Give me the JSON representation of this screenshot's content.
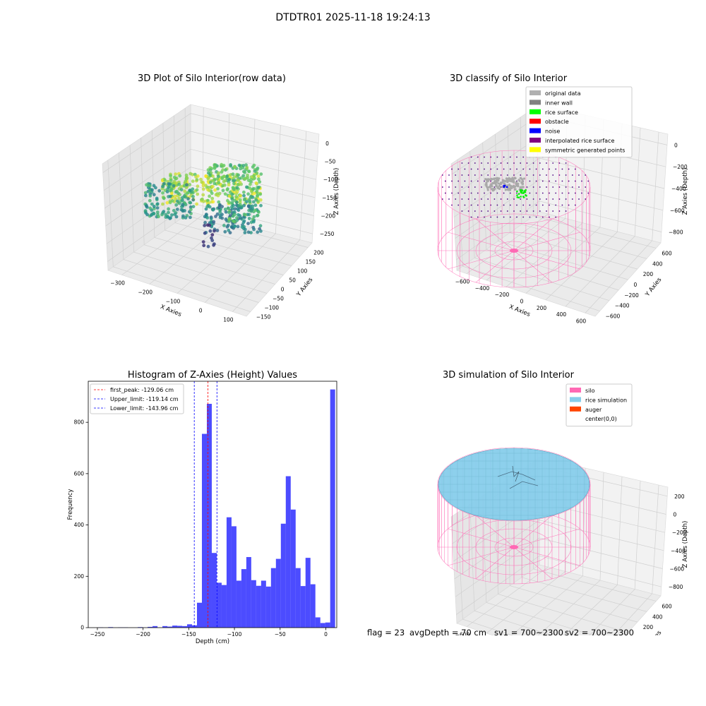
{
  "suptitle": "DTDTR01 2025-11-18 19:24:13",
  "panels": {
    "raw": {
      "title": "3D Plot of Silo Interior(row data)",
      "xlabel": "X Axies",
      "ylabel": "Y Axies",
      "zlabel": "Z Axies (Depth)",
      "xticks": [
        "−300",
        "−200",
        "−100",
        "0",
        "100"
      ],
      "yticks": [
        "−150",
        "−100",
        "−50",
        "0",
        "50",
        "100",
        "150",
        "200"
      ],
      "zticks": [
        "0",
        "−50",
        "−100",
        "−150",
        "−200",
        "−250"
      ]
    },
    "classify": {
      "title": "3D classify of Silo Interior",
      "xlabel": "X Axies",
      "ylabel": "Y Axies",
      "zlabel": "Z Axies (Depth)",
      "xticks": [
        "−600",
        "−400",
        "−200",
        "0",
        "200",
        "400",
        "600"
      ],
      "yticks": [
        "−600",
        "−400",
        "−200",
        "0",
        "200",
        "400",
        "600"
      ],
      "zticks": [
        "0",
        "−200",
        "−400",
        "−600",
        "−800"
      ],
      "legend": [
        {
          "label": "original data",
          "color": "#b0b0b0"
        },
        {
          "label": "inner wall",
          "color": "#808080"
        },
        {
          "label": "rice surface",
          "color": "#00ff00"
        },
        {
          "label": "obstacle",
          "color": "#ff0000"
        },
        {
          "label": "noise",
          "color": "#0000ff"
        },
        {
          "label": "interpolated rice surface",
          "color": "#800080"
        },
        {
          "label": "symmetric generated points",
          "color": "#ffff00"
        }
      ]
    },
    "simulation": {
      "title": "3D simulation of Silo Interior",
      "xlabel": "X Axies",
      "ylabel": "Y Axies",
      "zlabel": "Z Axies (Depth)",
      "xticks": [
        "−600",
        "−400",
        "−200",
        "0",
        "200",
        "400",
        "600"
      ],
      "yticks": [
        "−600",
        "−400",
        "−200",
        "0",
        "200",
        "400",
        "600"
      ],
      "zticks": [
        "200",
        "0",
        "−200",
        "−400",
        "−600",
        "−800"
      ],
      "legend": [
        {
          "label": "silo",
          "color": "#ff69b4"
        },
        {
          "label": "rice simulation",
          "color": "#87ceeb"
        },
        {
          "label": "auger",
          "color": "#ff4500"
        },
        {
          "label": "center(0,0)",
          "color": ""
        }
      ]
    }
  },
  "colors": {
    "silo": "#ff69b4",
    "rice": "#87ceeb",
    "hist": "#0000ff",
    "peak": "#ff0000",
    "limit": "#0000ff"
  },
  "footer": {
    "flag": "flag = 23",
    "avgdepth": "avgDepth = 70 cm",
    "sv1": "sv1 = 700~2300",
    "sv2": "sv2 = 700~2300"
  },
  "chart_data": {
    "type": "bar",
    "title": "Histogram of Z-Axies (Height) Values",
    "xlabel": "Depth (cm)",
    "ylabel": "Frequency",
    "xlim": [
      -260,
      12
    ],
    "ylim": [
      0,
      960
    ],
    "xticks": [
      -250,
      -200,
      -150,
      -100,
      -50,
      0
    ],
    "yticks": [
      0,
      200,
      400,
      600,
      800
    ],
    "bins": [
      {
        "x0": -249,
        "x1": -243.6,
        "count": 1
      },
      {
        "x0": -243.6,
        "x1": -238.2,
        "count": 0
      },
      {
        "x0": -238.2,
        "x1": -232.8,
        "count": 2
      },
      {
        "x0": -232.8,
        "x1": -227.4,
        "count": 0
      },
      {
        "x0": -227.4,
        "x1": -222,
        "count": 1
      },
      {
        "x0": -222,
        "x1": -216.6,
        "count": 1
      },
      {
        "x0": -216.6,
        "x1": -211.2,
        "count": 0
      },
      {
        "x0": -211.2,
        "x1": -205.8,
        "count": 0
      },
      {
        "x0": -205.8,
        "x1": -200.4,
        "count": 2
      },
      {
        "x0": -200.4,
        "x1": -195,
        "count": 0
      },
      {
        "x0": -195,
        "x1": -189.6,
        "count": 3
      },
      {
        "x0": -189.6,
        "x1": -184.2,
        "count": 6
      },
      {
        "x0": -184.2,
        "x1": -178.8,
        "count": 0
      },
      {
        "x0": -178.8,
        "x1": -173.4,
        "count": 6
      },
      {
        "x0": -173.4,
        "x1": -168,
        "count": 4
      },
      {
        "x0": -168,
        "x1": -162.6,
        "count": 8
      },
      {
        "x0": -162.6,
        "x1": -157.2,
        "count": 7
      },
      {
        "x0": -157.2,
        "x1": -151.8,
        "count": 6
      },
      {
        "x0": -151.8,
        "x1": -146.4,
        "count": 13
      },
      {
        "x0": -146.4,
        "x1": -141,
        "count": 9
      },
      {
        "x0": -141,
        "x1": -135.6,
        "count": 97
      },
      {
        "x0": -135.6,
        "x1": -130.2,
        "count": 755
      },
      {
        "x0": -130.2,
        "x1": -124.8,
        "count": 872
      },
      {
        "x0": -124.8,
        "x1": -119.4,
        "count": 291
      },
      {
        "x0": -119.4,
        "x1": -114,
        "count": 175
      },
      {
        "x0": -114,
        "x1": -108.6,
        "count": 166
      },
      {
        "x0": -108.6,
        "x1": -103.2,
        "count": 430
      },
      {
        "x0": -103.2,
        "x1": -97.8,
        "count": 395
      },
      {
        "x0": -97.8,
        "x1": -92.4,
        "count": 183
      },
      {
        "x0": -92.4,
        "x1": -87,
        "count": 228
      },
      {
        "x0": -87,
        "x1": -81.6,
        "count": 275
      },
      {
        "x0": -81.6,
        "x1": -76.2,
        "count": 185
      },
      {
        "x0": -76.2,
        "x1": -70.8,
        "count": 163
      },
      {
        "x0": -70.8,
        "x1": -65.4,
        "count": 183
      },
      {
        "x0": -65.4,
        "x1": -60,
        "count": 160
      },
      {
        "x0": -60,
        "x1": -54.6,
        "count": 232
      },
      {
        "x0": -54.6,
        "x1": -49.2,
        "count": 268
      },
      {
        "x0": -49.2,
        "x1": -43.8,
        "count": 405
      },
      {
        "x0": -43.8,
        "x1": -38.4,
        "count": 590
      },
      {
        "x0": -38.4,
        "x1": -33,
        "count": 460
      },
      {
        "x0": -33,
        "x1": -27.6,
        "count": 232
      },
      {
        "x0": -27.6,
        "x1": -22.2,
        "count": 162
      },
      {
        "x0": -22.2,
        "x1": -16.8,
        "count": 272
      },
      {
        "x0": -16.8,
        "x1": -11.4,
        "count": 169
      },
      {
        "x0": -11.4,
        "x1": -6,
        "count": 40
      },
      {
        "x0": -6,
        "x1": -0.6,
        "count": 18
      },
      {
        "x0": -0.6,
        "x1": 4.8,
        "count": 20
      },
      {
        "x0": 4.8,
        "x1": 10.2,
        "count": 928
      }
    ],
    "vlines": [
      {
        "label": "first_peak: -129.06 cm",
        "value": -129.06,
        "color": "#ff0000"
      },
      {
        "label": "Upper_limit: -119.14 cm",
        "value": -119.14,
        "color": "#0000ff"
      },
      {
        "label": "Lower_limit: -143.96 cm",
        "value": -143.96,
        "color": "#0000ff"
      }
    ]
  }
}
